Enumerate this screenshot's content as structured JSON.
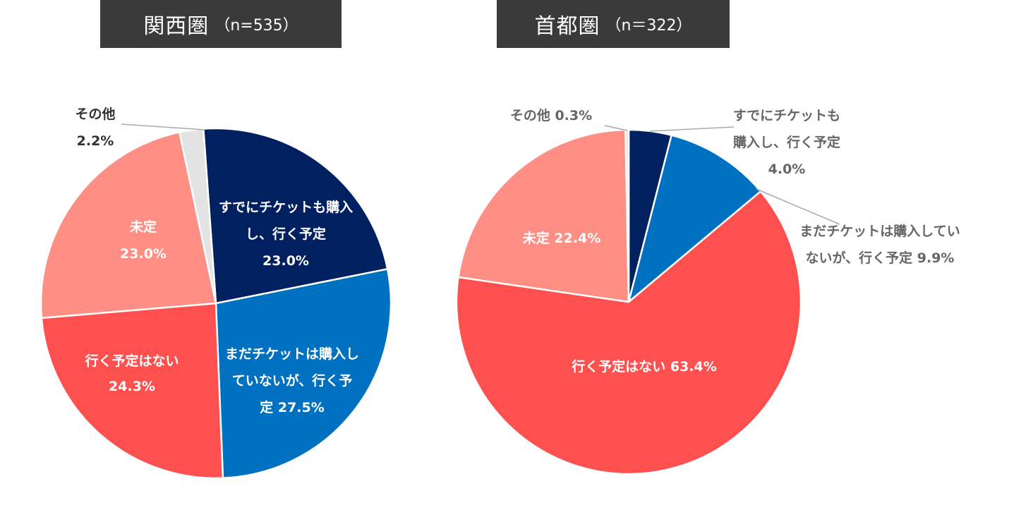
{
  "titles": [
    {
      "main": "関西圏",
      "n": "（n=535）"
    },
    {
      "main": "首都圏",
      "n": "（n＝322）"
    }
  ],
  "colors": {
    "already_bought": "#002060",
    "not_yet_bought": "#0070C0",
    "not_going": "#FF5050",
    "undecided": "#FF8F85",
    "other": "#E3E3E3"
  },
  "chart_data": [
    {
      "type": "pie",
      "title": "関西圏（n=535）",
      "start_angle_deg": -4.1,
      "slices": [
        {
          "key": "already_bought",
          "label": "すでにチケットも購入し、行く予定",
          "value": 23.0,
          "display": "23.0%",
          "label_lines": [
            "すでにチケットも購入",
            "し、行く予定",
            "23.0%"
          ]
        },
        {
          "key": "not_yet_bought",
          "label": "まだチケットは購入していないが、行く予定",
          "value": 27.5,
          "display": "27.5%",
          "label_lines": [
            "まだチケットは購入し",
            "ていないが、行く予",
            "定 27.5%"
          ]
        },
        {
          "key": "not_going",
          "label": "行く予定はない",
          "value": 24.3,
          "display": "24.3%",
          "label_lines": [
            "行く予定はない",
            "24.3%"
          ]
        },
        {
          "key": "undecided",
          "label": "未定",
          "value": 23.0,
          "display": "23.0%",
          "label_lines": [
            "未定",
            "23.0%"
          ]
        },
        {
          "key": "other",
          "label": "その他",
          "value": 2.2,
          "display": "2.2%",
          "label_lines": [
            "その他",
            "2.2%"
          ]
        }
      ]
    },
    {
      "type": "pie",
      "title": "首都圏（n＝322）",
      "start_angle_deg": 0,
      "slices": [
        {
          "key": "already_bought",
          "label": "すでにチケットも購入し、行く予定",
          "value": 4.0,
          "display": "4.0%",
          "label_lines": [
            "すでにチケットも",
            "購入し、行く予定",
            "4.0%"
          ]
        },
        {
          "key": "not_yet_bought",
          "label": "まだチケットは購入していないが、行く予定",
          "value": 9.9,
          "display": "9.9%",
          "label_lines": [
            "まだチケットは購入してい",
            "ないが、行く予定 9.9%"
          ]
        },
        {
          "key": "not_going",
          "label": "行く予定はない",
          "value": 63.4,
          "display": "63.4%",
          "label_lines": [
            "行く予定はない 63.4%"
          ]
        },
        {
          "key": "undecided",
          "label": "未定",
          "value": 22.4,
          "display": "22.4%",
          "label_lines": [
            "未定 22.4%"
          ]
        },
        {
          "key": "other",
          "label": "その他",
          "value": 0.3,
          "display": "0.3%",
          "label_lines": [
            "その他 0.3%"
          ]
        }
      ]
    }
  ]
}
